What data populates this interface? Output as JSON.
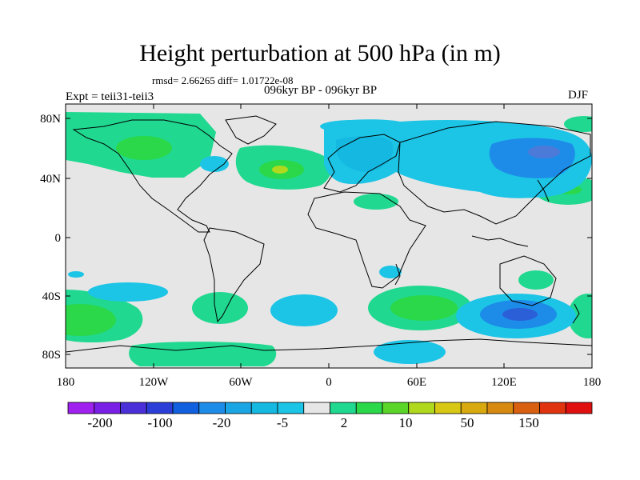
{
  "header": {
    "title": "Height perturbation at 500 hPa (in m)",
    "stats": "rmsd= 2.66265 diff= 1.01722e-08",
    "period": "096kyr BP - 096kyr BP",
    "experiment": "Expt = teii31-teii3",
    "season": "DJF"
  },
  "axes": {
    "lat_labels": [
      "80N",
      "40N",
      "0",
      "40S",
      "80S"
    ],
    "lon_labels": [
      "180",
      "120W",
      "60W",
      "0",
      "60E",
      "120E",
      "180"
    ]
  },
  "colorbar": {
    "labels": [
      "-200",
      "-100",
      "-20",
      "-5",
      "2",
      "10",
      "50",
      "150"
    ],
    "colors": [
      "#a020f0",
      "#7a1fe6",
      "#4b2fd8",
      "#2b3fd8",
      "#1060e0",
      "#1d8ce8",
      "#1aa6e4",
      "#14b8e0",
      "#1cc4e6",
      "#e6e6e6",
      "#20d890",
      "#2ad84a",
      "#5ad628",
      "#b0d81c",
      "#d8c814",
      "#d8aa10",
      "#d88a10",
      "#d86010",
      "#e03410",
      "#e01010"
    ]
  },
  "map": {
    "background": "#e6e6e6",
    "level_colors": {
      "neg_light": "#1cc4e6",
      "neg_mid": "#14b8e0",
      "neg_deep": "#1d8ce8",
      "pos_light": "#20d890",
      "pos_mid": "#2ad84a",
      "pos_yellow": "#b0d81c",
      "ocean_bg": "#e6e6e6"
    }
  }
}
